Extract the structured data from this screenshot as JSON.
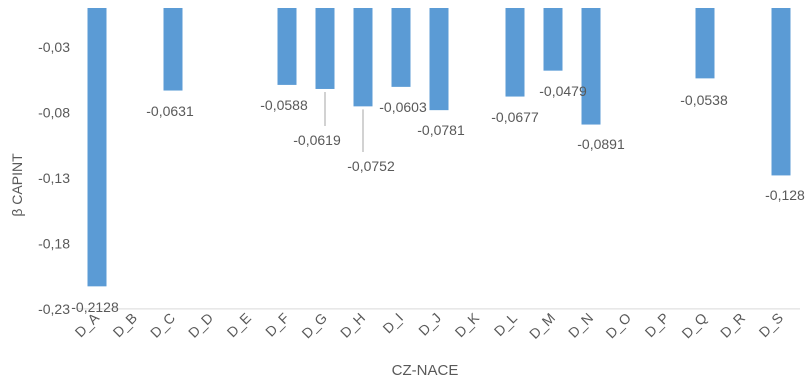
{
  "chart_data": {
    "type": "bar",
    "title": "",
    "xlabel": "CZ-NACE",
    "ylabel": "β CAPINT",
    "categories": [
      "D_A",
      "D_B",
      "D_C",
      "D_D",
      "D_E",
      "D_F",
      "D_G",
      "D_H",
      "D_I",
      "D_J",
      "D_K",
      "D_L",
      "D_M",
      "D_N",
      "D_O",
      "D_P",
      "D_Q",
      "D_R",
      "D_S"
    ],
    "values": [
      -0.2128,
      null,
      -0.0631,
      null,
      null,
      -0.0588,
      -0.0619,
      -0.0752,
      -0.0603,
      -0.0781,
      null,
      -0.0677,
      -0.0479,
      -0.0891,
      null,
      null,
      -0.0538,
      null,
      -0.128
    ],
    "data_labels": [
      "-0,2128",
      "",
      "-0,0631",
      "",
      "",
      "-0,0588",
      "-0,0619",
      "-0,0752",
      "-0,0603",
      "-0,0781",
      "",
      "-0,0677",
      "-0,0479",
      "-0,0891",
      "",
      "",
      "-0,0538",
      "",
      "-0,128"
    ],
    "yticks": [
      -0.03,
      -0.08,
      -0.13,
      -0.18,
      -0.23
    ],
    "ytick_labels": [
      "-0,03",
      "-0,08",
      "-0,13",
      "-0,18",
      "-0,23"
    ],
    "ylim": [
      -0.23,
      0.0
    ],
    "grid": false,
    "legend": "none",
    "bar_color": "#5B9BD5",
    "axis_color": "#D9D9D9",
    "text_color": "#595959"
  }
}
